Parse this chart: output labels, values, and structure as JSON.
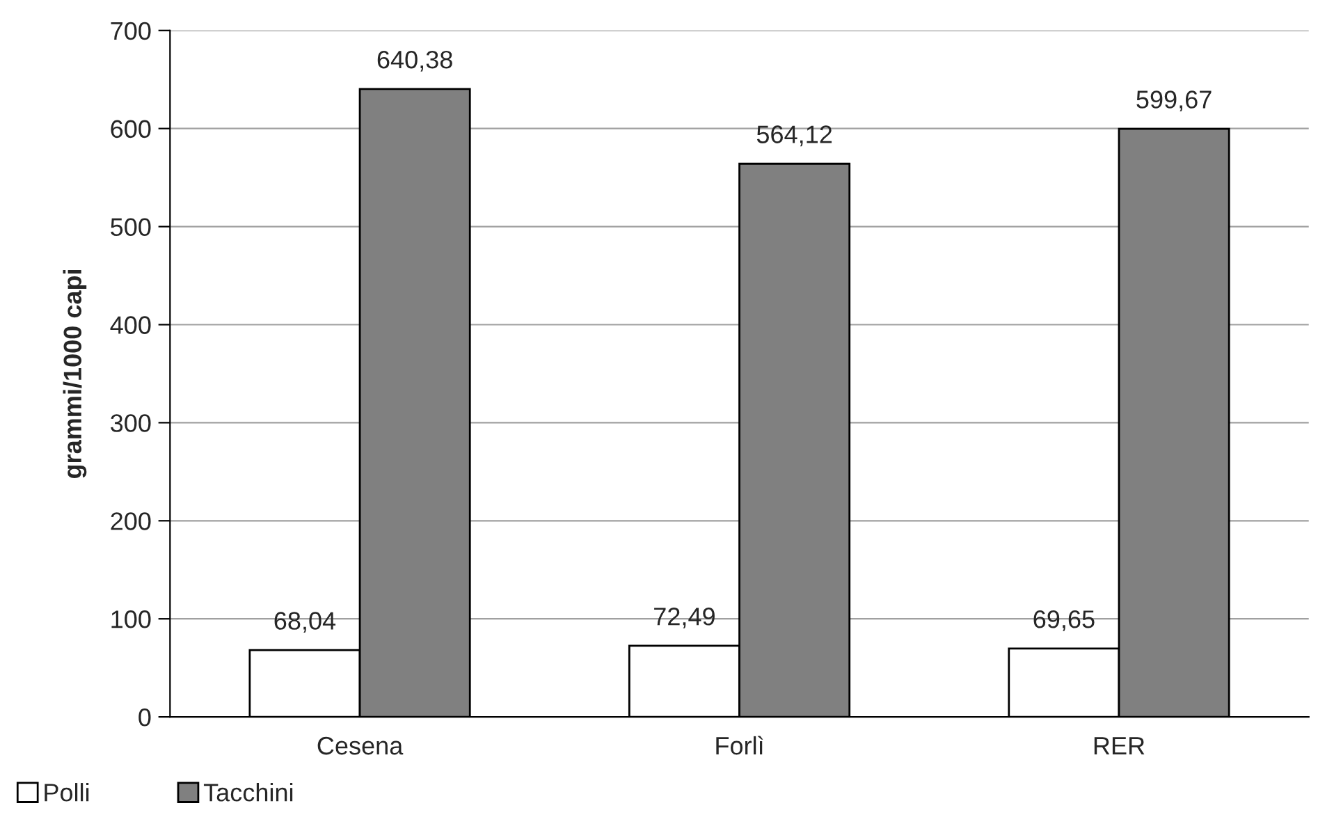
{
  "chart_data": {
    "type": "bar",
    "ylabel": "grammi/1000 capi",
    "categories": [
      "Cesena",
      "Forlì",
      "RER"
    ],
    "series": [
      {
        "name": "Polli",
        "color": "#ffffff",
        "values": [
          68.04,
          72.49,
          69.65
        ],
        "value_labels": [
          "68,04",
          "72,49",
          "69,65"
        ]
      },
      {
        "name": "Tacchini",
        "color": "#808080",
        "values": [
          640.38,
          564.12,
          599.67
        ],
        "value_labels": [
          "640,38",
          "564,12",
          "599,67"
        ]
      }
    ],
    "ylim": [
      0,
      700
    ],
    "yticks": [
      0,
      100,
      200,
      300,
      400,
      500,
      600,
      700
    ],
    "grid": "y",
    "legend": "bottom left"
  }
}
